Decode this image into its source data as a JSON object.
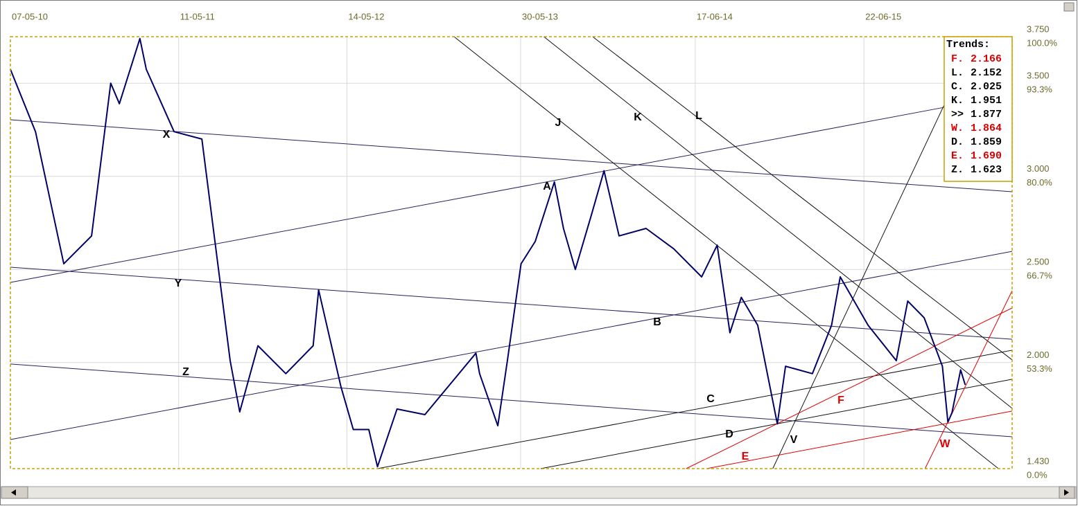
{
  "chart_data": {
    "type": "line",
    "xlim": [
      "2010-05-07",
      "2016-05-12"
    ],
    "ylim": [
      1.43,
      3.75
    ],
    "xticks": [
      {
        "value": "2010-05-07",
        "label": "07-05-10"
      },
      {
        "value": "2011-05-11",
        "label": "11-05-11"
      },
      {
        "value": "2012-05-14",
        "label": "14-05-12"
      },
      {
        "value": "2013-05-30",
        "label": "30-05-13"
      },
      {
        "value": "2014-06-17",
        "label": "17-06-14"
      },
      {
        "value": "2015-06-22",
        "label": "22-06-15"
      }
    ],
    "yticks": [
      {
        "value": 3.75,
        "label": "3.750"
      },
      {
        "value": 3.5,
        "label": "3.500"
      },
      {
        "value": 3.0,
        "label": "3.000"
      },
      {
        "value": 2.5,
        "label": "2.500"
      },
      {
        "value": 2.0,
        "label": "2.000"
      },
      {
        "value": 1.43,
        "label": "1.430"
      }
    ],
    "ytick_percent_labels": [
      "100.0%",
      "93.3%",
      "80.0%",
      "66.7%",
      "53.3%",
      "0.0%"
    ],
    "grid": true,
    "series": [
      {
        "color": "#000066",
        "x": [
          "2010-05-07",
          "2010-07-01",
          "2010-09-01",
          "2010-11-01",
          "2010-12-13",
          "2011-01-01",
          "2011-02-15",
          "2011-03-01",
          "2011-05-01",
          "2011-07-01",
          "2011-09-01",
          "2011-09-22",
          "2011-11-01",
          "2012-01-01",
          "2012-03-01",
          "2012-03-13",
          "2012-05-01",
          "2012-05-28",
          "2012-07-01",
          "2012-07-20",
          "2012-09-01",
          "2012-11-01",
          "2013-01-01",
          "2013-02-21",
          "2013-03-01",
          "2013-04-10",
          "2013-05-01",
          "2013-05-31",
          "2013-07-01",
          "2013-08-12",
          "2013-09-01",
          "2013-09-27",
          "2013-11-01",
          "2013-11-29",
          "2014-01-01",
          "2014-03-01",
          "2014-05-01",
          "2014-07-01",
          "2014-08-04",
          "2014-09-01",
          "2014-09-26",
          "2014-11-01",
          "2014-12-14",
          "2015-01-01",
          "2015-03-01",
          "2015-04-12",
          "2015-05-01",
          "2015-07-01",
          "2015-09-01",
          "2015-09-26",
          "2015-11-01",
          "2015-12-11",
          "2015-12-23",
          "2016-01-01",
          "2016-01-20",
          "2016-01-30"
        ],
        "values": [
          3.575,
          3.24,
          2.53,
          2.68,
          3.5,
          3.39,
          3.74,
          3.575,
          3.24,
          3.2,
          2.01,
          1.735,
          2.09,
          1.94,
          2.09,
          2.39,
          1.87,
          1.64,
          1.64,
          1.44,
          1.75,
          1.72,
          1.9,
          2.05,
          1.94,
          1.66,
          2.01,
          2.53,
          2.65,
          2.97,
          2.72,
          2.5,
          2.79,
          3.03,
          2.68,
          2.72,
          2.61,
          2.46,
          2.63,
          2.16,
          2.35,
          2.2,
          1.67,
          1.98,
          1.94,
          2.2,
          2.46,
          2.2,
          2.01,
          2.33,
          2.24,
          1.98,
          1.68,
          1.73,
          1.96,
          1.88
        ]
      }
    ],
    "trend_lines": [
      {
        "label": "X",
        "color": "#2a1f5c",
        "x": [
          "2010-05-07",
          "2016-05-12"
        ],
        "values": [
          3.304,
          2.917
        ]
      },
      {
        "label": "Y",
        "color": "#2a1f5c",
        "x": [
          "2010-05-07",
          "2016-05-12"
        ],
        "values": [
          2.512,
          2.125
        ]
      },
      {
        "label": "Z",
        "color": "#2a1f5c",
        "x": [
          "2010-05-07",
          "2016-05-12"
        ],
        "values": [
          1.992,
          1.601
        ]
      },
      {
        "label": "A",
        "color": "#2a1f5c",
        "x": [
          "2010-05-07",
          "2015-12-16"
        ],
        "values": [
          2.43,
          3.371
        ]
      },
      {
        "label": "B",
        "color": "#2a1f5c",
        "x": [
          "2010-05-07",
          "2016-05-12"
        ],
        "values": [
          1.586,
          2.597
        ]
      },
      {
        "label": "C",
        "color": "#111111",
        "x": [
          "2012-07-20",
          "2016-05-12"
        ],
        "values": [
          1.43,
          2.066
        ]
      },
      {
        "label": "D",
        "color": "#111111",
        "x": [
          "2013-07-13",
          "2016-05-12"
        ],
        "values": [
          1.43,
          1.91
        ]
      },
      {
        "label": "J",
        "color": "#111111",
        "x": [
          "2013-01-04",
          "2016-04-12"
        ],
        "values": [
          3.75,
          1.43
        ]
      },
      {
        "label": "K",
        "color": "#111111",
        "x": [
          "2013-07-20",
          "2016-05-12"
        ],
        "values": [
          3.75,
          1.754
        ]
      },
      {
        "label": "L",
        "color": "#111111",
        "x": [
          "2013-11-04",
          "2016-05-12"
        ],
        "values": [
          3.75,
          2.014
        ]
      },
      {
        "label": "V",
        "color": "#111111",
        "x": [
          "2014-12-04",
          "2015-12-16"
        ],
        "values": [
          1.43,
          3.389
        ]
      },
      {
        "label": "E",
        "color": "#dd0000",
        "x": [
          "2014-07-12",
          "2016-05-12"
        ],
        "values": [
          1.43,
          1.739
        ]
      },
      {
        "label": "F",
        "color": "#dd0000",
        "x": [
          "2014-05-28",
          "2016-05-12"
        ],
        "values": [
          1.43,
          2.293
        ]
      },
      {
        "label": "W",
        "color": "#dd0000",
        "x": [
          "2015-11-03",
          "2016-05-12"
        ],
        "values": [
          1.43,
          2.385
        ]
      }
    ],
    "legend": {
      "title": "Trends:",
      "entries": [
        {
          "name": "F.",
          "value": 2.166,
          "color": "#dd0000"
        },
        {
          "name": "L.",
          "value": 2.152,
          "color": "#000000"
        },
        {
          "name": "C.",
          "value": 2.025,
          "color": "#000000"
        },
        {
          "name": "K.",
          "value": 1.951,
          "color": "#000000"
        },
        {
          "name": ">>",
          "value": 1.877,
          "color": "#000000"
        },
        {
          "name": "W.",
          "value": 1.864,
          "color": "#dd0000"
        },
        {
          "name": "D.",
          "value": 1.859,
          "color": "#000000"
        },
        {
          "name": "E.",
          "value": 1.69,
          "value_label": "1.690",
          "color": "#dd0000"
        },
        {
          "name": "Z.",
          "value": 1.623,
          "color": "#000000"
        }
      ]
    }
  }
}
